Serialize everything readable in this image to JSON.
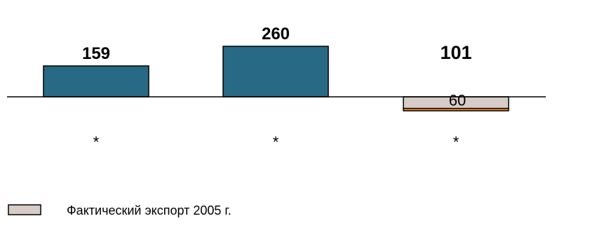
{
  "chart_data": {
    "type": "bar",
    "title": "",
    "xlabel": "",
    "ylabel": "",
    "categories": [
      "*",
      "*",
      "*"
    ],
    "totals": [
      159,
      260,
      101
    ],
    "series": [
      {
        "name": "",
        "color": "#286985",
        "values": [
          159,
          260,
          0
        ]
      },
      {
        "name": "Фактический экспорт 2005 г.",
        "color": "#D7CCC8",
        "values": [
          0,
          0,
          -60
        ],
        "labels": [
          "",
          "",
          "60"
        ]
      },
      {
        "name": "",
        "color": "#F4900F",
        "values": [
          0,
          0,
          -12
        ]
      }
    ],
    "axis_color": "#000000",
    "grid": false,
    "legend": {
      "position": "bottom-left"
    }
  }
}
